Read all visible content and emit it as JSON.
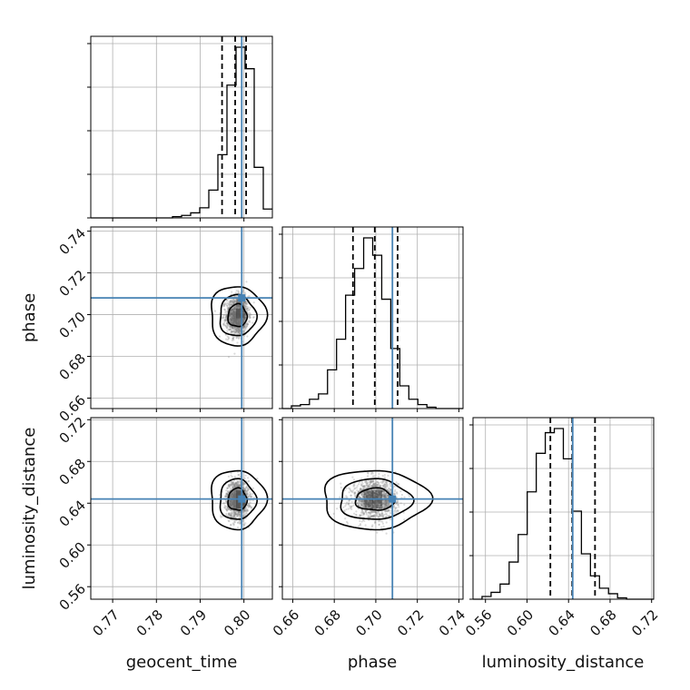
{
  "colors": {
    "truth": "#4682b4",
    "hist": "#000000",
    "grid": "#b0b0b0",
    "points": "#7f7f7f",
    "background": "#ffffff"
  },
  "chart_data": {
    "type": "corner",
    "parameters": [
      "geocent_time",
      "phase",
      "luminosity_distance"
    ],
    "truths": {
      "geocent_time": 0.7995,
      "phase": 0.708,
      "luminosity_distance": 0.644
    },
    "ranges": {
      "geocent_time": [
        0.765,
        0.8065
      ],
      "phase": [
        0.655,
        0.742
      ],
      "luminosity_distance": [
        0.548,
        0.722
      ]
    },
    "ticks": {
      "geocent_time": [
        "0.77",
        "0.78",
        "0.79",
        "0.80"
      ],
      "phase": [
        "0.66",
        "0.68",
        "0.70",
        "0.72",
        "0.74"
      ],
      "luminosity_distance": [
        "0.56",
        "0.60",
        "0.64",
        "0.68",
        "0.72"
      ]
    },
    "tick_values": {
      "geocent_time": [
        0.77,
        0.78,
        0.79,
        0.8
      ],
      "phase": [
        0.66,
        0.68,
        0.7,
        0.72,
        0.74
      ],
      "luminosity_distance": [
        0.56,
        0.6,
        0.64,
        0.68,
        0.72
      ]
    },
    "quantiles": {
      "geocent_time": [
        0.795,
        0.798,
        0.8005
      ],
      "phase": [
        0.689,
        0.6995,
        0.7105
      ],
      "luminosity_distance": [
        0.6225,
        0.6435,
        0.6655
      ]
    },
    "histograms": {
      "geocent_time": {
        "edges": [
          0.765,
          0.767075,
          0.76915,
          0.771225,
          0.7733,
          0.775375,
          0.77745,
          0.779525,
          0.7816,
          0.783675,
          0.78575,
          0.787825,
          0.7899,
          0.791975,
          0.79405,
          0.796125,
          0.7982,
          0.800275,
          0.80235,
          0.804425,
          0.8065
        ],
        "counts": [
          0,
          0,
          0,
          0,
          0,
          0,
          0,
          0,
          0,
          1,
          2,
          4,
          8,
          22,
          50,
          105,
          135,
          118,
          40,
          7
        ]
      },
      "phase": {
        "edges": [
          0.655,
          0.65935,
          0.6637,
          0.66805,
          0.6724,
          0.67675,
          0.6811,
          0.68545,
          0.6898,
          0.69415,
          0.6985,
          0.70285,
          0.7072,
          0.71155,
          0.7159,
          0.72025,
          0.7246,
          0.72895,
          0.7333,
          0.73765,
          0.742
        ],
        "counts": [
          0,
          2,
          3,
          7,
          11,
          29,
          52,
          85,
          105,
          128,
          115,
          82,
          45,
          17,
          7,
          3,
          1,
          0,
          0,
          0
        ]
      },
      "luminosity_distance": {
        "edges": [
          0.548,
          0.5567,
          0.5654,
          0.5741,
          0.5828,
          0.5915,
          0.6002,
          0.6089,
          0.6176,
          0.6263,
          0.635,
          0.6437,
          0.6524,
          0.6611,
          0.6698,
          0.6785,
          0.6872,
          0.6959,
          0.7046,
          0.7133,
          0.722
        ],
        "counts": [
          0,
          2,
          5,
          11,
          27,
          47,
          78,
          106,
          121,
          124,
          102,
          64,
          33,
          17,
          8,
          4,
          1,
          0,
          0,
          0
        ]
      }
    },
    "contours": {
      "geocent_time_vs_phase": {
        "center": [
          0.7985,
          0.6995
        ],
        "levels_sigma": [
          [
            0.0012,
            0.0045
          ],
          [
            0.0023,
            0.0082
          ],
          [
            0.0035,
            0.0118
          ]
        ]
      },
      "geocent_time_vs_luminosity_distance": {
        "center": [
          0.7985,
          0.6435
        ],
        "levels_sigma": [
          [
            0.0012,
            0.0088
          ],
          [
            0.0023,
            0.0162
          ],
          [
            0.0035,
            0.0235
          ]
        ]
      },
      "phase_vs_luminosity_distance": {
        "center": [
          0.6995,
          0.6435
        ],
        "levels_sigma": [
          [
            0.0052,
            0.0088
          ],
          [
            0.0096,
            0.0162
          ],
          [
            0.0142,
            0.0235
          ]
        ]
      }
    },
    "grid": true
  }
}
